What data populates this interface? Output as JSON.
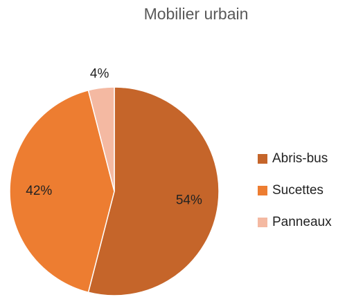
{
  "chart_data": {
    "type": "pie",
    "title": "Mobilier urbain",
    "categories": [
      "Abris-bus",
      "Sucettes",
      "Panneaux"
    ],
    "values": [
      54,
      42,
      4
    ],
    "value_labels": [
      "54%",
      "42%",
      "4%"
    ],
    "colors": [
      "#c5652a",
      "#ed7d31",
      "#f4b9a2"
    ],
    "legend": "right"
  }
}
